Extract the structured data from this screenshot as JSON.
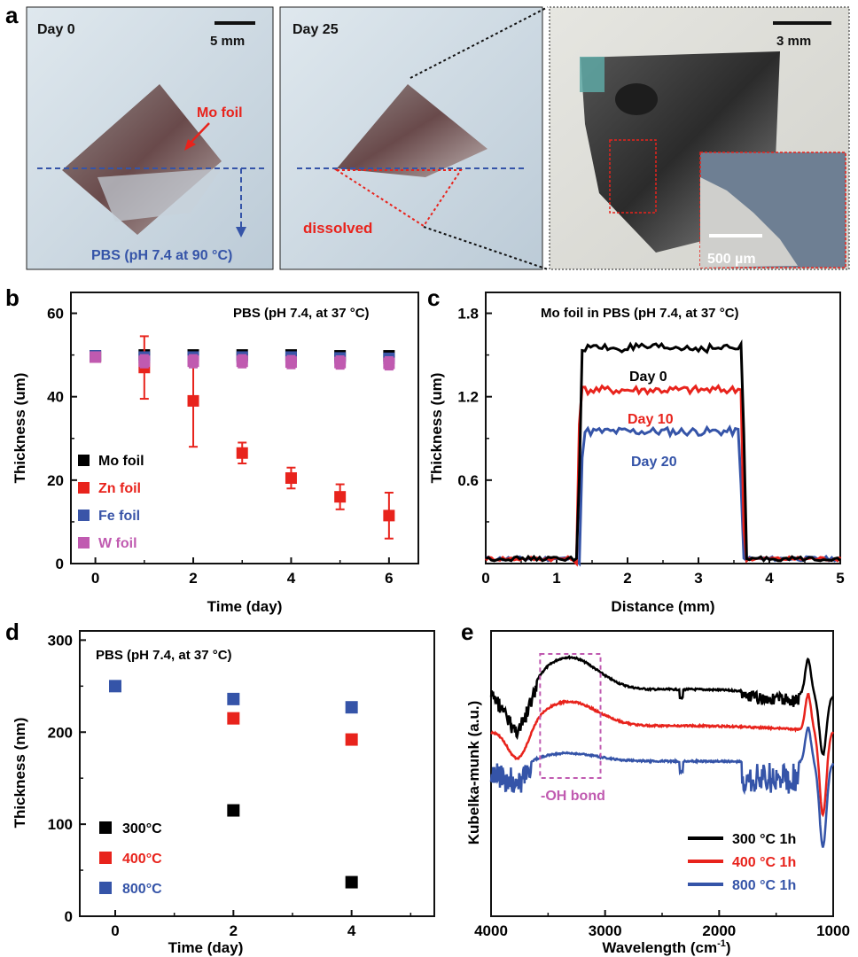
{
  "panel_a": {
    "letter": "a",
    "photos": [
      {
        "label": "Day 0",
        "scale_bar": "5 mm",
        "annotations": [
          "Mo foil",
          "PBS (pH 7.4 at 90 °C)"
        ]
      },
      {
        "label": "Day 25",
        "annotations": [
          "dissolved"
        ]
      },
      {
        "scale_bar": "3 mm",
        "inset_scale_bar": "500 µm"
      }
    ],
    "colors": {
      "red": "#e8231c",
      "blue": "#3554a8"
    }
  },
  "chart_data": [
    {
      "id": "b",
      "letter": "b",
      "type": "scatter",
      "title": "PBS (pH 7.4, at 37 °C)",
      "xlabel": "Time (day)",
      "ylabel": "Thickness (um)",
      "xlim": [
        -0.5,
        6.6
      ],
      "ylim": [
        0,
        65
      ],
      "xticks": [
        0,
        2,
        4,
        6
      ],
      "yticks": [
        0,
        20,
        40,
        60
      ],
      "series": [
        {
          "name": "Mo foil",
          "color": "#000000",
          "x": [
            0,
            1,
            2,
            3,
            4,
            5,
            6
          ],
          "y": [
            49.8,
            50,
            50,
            50,
            50,
            49.8,
            49.8
          ],
          "err": [
            1.0,
            1.0,
            1.0,
            1.0,
            1.0,
            1.0,
            1.0
          ]
        },
        {
          "name": "Zn foil",
          "color": "#e8231c",
          "x": [
            0,
            1,
            2,
            3,
            4,
            5,
            6
          ],
          "y": [
            49.5,
            47,
            39,
            26.5,
            20.5,
            16,
            11.5
          ],
          "err": [
            1.0,
            7.5,
            11,
            2.5,
            2.5,
            3,
            5.5
          ]
        },
        {
          "name": "Fe foil",
          "color": "#3a55a8",
          "x": [
            0,
            1,
            2,
            3,
            4,
            5,
            6
          ],
          "y": [
            49.8,
            49.5,
            49.5,
            49.5,
            49.5,
            49.3,
            49.2
          ],
          "err": [
            1.0,
            1.0,
            1.0,
            1.0,
            1.0,
            1.0,
            1.0
          ]
        },
        {
          "name": "W foil",
          "color": "#c05ab0",
          "x": [
            0,
            1,
            2,
            3,
            4,
            5,
            6
          ],
          "y": [
            49.5,
            48.5,
            48.5,
            48.5,
            48.3,
            48.2,
            48
          ],
          "err": [
            1.0,
            1.5,
            1.5,
            1.5,
            1.5,
            1.5,
            1.5
          ]
        }
      ],
      "legend_position": "bottom-left"
    },
    {
      "id": "c",
      "letter": "c",
      "type": "line",
      "title": "Mo foil in PBS (pH 7.4, at 37 °C)",
      "xlabel": "Distance (mm)",
      "ylabel": "Thickness (um)",
      "xlim": [
        0,
        5
      ],
      "ylim": [
        0,
        1.95
      ],
      "xticks": [
        0,
        1,
        2,
        3,
        4,
        5
      ],
      "yticks": [
        0.6,
        1.2,
        1.8
      ],
      "series": [
        {
          "name": "Day 0",
          "color": "#000000",
          "x_start": 1.3,
          "x_end": 3.62,
          "plateau": 1.55
        },
        {
          "name": "Day 10",
          "color": "#e8231c",
          "x_start": 1.28,
          "x_end": 3.6,
          "plateau": 1.25
        },
        {
          "name": "Day 20",
          "color": "#3554a8",
          "x_start": 1.32,
          "x_end": 3.58,
          "plateau": 0.95
        }
      ]
    },
    {
      "id": "d",
      "letter": "d",
      "type": "scatter",
      "title": "PBS (pH 7.4, at 37 °C)",
      "xlabel": "Time (day)",
      "ylabel": "Thickness (nm)",
      "xlim": [
        -0.6,
        5.4
      ],
      "ylim": [
        0,
        310
      ],
      "xticks": [
        0,
        2,
        4
      ],
      "yticks": [
        0,
        100,
        200,
        300
      ],
      "series": [
        {
          "name": "300°C",
          "color": "#000000",
          "x": [
            2,
            4
          ],
          "y": [
            115,
            37
          ]
        },
        {
          "name": "400°C",
          "color": "#e8231c",
          "x": [
            2,
            4
          ],
          "y": [
            215,
            192
          ]
        },
        {
          "name": "800°C",
          "color": "#3554a8",
          "x": [
            0,
            2,
            4
          ],
          "y": [
            250,
            236,
            227
          ]
        }
      ],
      "legend_position": "bottom-left"
    },
    {
      "id": "e",
      "letter": "e",
      "type": "line",
      "xlabel": "Wavelength (cm",
      "xlabel_sup": "-1",
      "xlabel_end": ")",
      "ylabel": "Kubelka-munk (a.u.)",
      "xlim": [
        4000,
        1000
      ],
      "x_reversed": true,
      "xticks": [
        4000,
        3000,
        2000,
        1000
      ],
      "annotation": "-OH bond",
      "highlight_box": {
        "x_from": 3570,
        "x_to": 3040,
        "color": "#c05ab0"
      },
      "series": [
        {
          "name": "300 °C 1h",
          "color": "#000000"
        },
        {
          "name": "400 °C 1h",
          "color": "#e8231c"
        },
        {
          "name": "800 °C 1h",
          "color": "#3554a8"
        }
      ],
      "legend_position": "bottom-right"
    }
  ]
}
